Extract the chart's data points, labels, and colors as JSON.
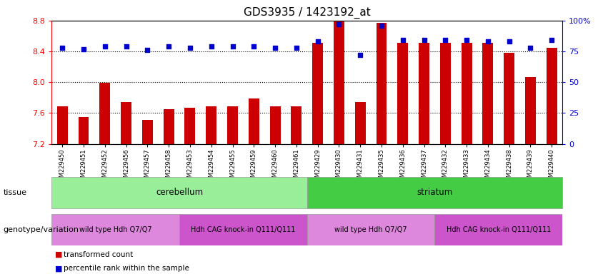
{
  "title": "GDS3935 / 1423192_at",
  "samples": [
    "GSM229450",
    "GSM229451",
    "GSM229452",
    "GSM229456",
    "GSM229457",
    "GSM229458",
    "GSM229453",
    "GSM229454",
    "GSM229455",
    "GSM229459",
    "GSM229460",
    "GSM229461",
    "GSM229429",
    "GSM229430",
    "GSM229431",
    "GSM229435",
    "GSM229436",
    "GSM229437",
    "GSM229432",
    "GSM229433",
    "GSM229434",
    "GSM229438",
    "GSM229439",
    "GSM229440"
  ],
  "bar_values": [
    7.69,
    7.55,
    7.99,
    7.74,
    7.51,
    7.65,
    7.67,
    7.69,
    7.69,
    7.79,
    7.69,
    7.69,
    8.51,
    8.8,
    7.74,
    8.77,
    8.51,
    8.51,
    8.51,
    8.51,
    8.51,
    8.38,
    8.07,
    8.45
  ],
  "percentile_values": [
    78,
    77,
    79,
    79,
    76,
    79,
    78,
    79,
    79,
    79,
    78,
    78,
    83,
    97,
    72,
    96,
    84,
    84,
    84,
    84,
    83,
    83,
    78,
    84
  ],
  "ymin": 7.2,
  "ymax": 8.8,
  "yticks": [
    7.2,
    7.6,
    8.0,
    8.4,
    8.8
  ],
  "right_yticks": [
    0,
    25,
    50,
    75,
    100
  ],
  "right_yticklabels": [
    "0",
    "25",
    "50",
    "75",
    "100%"
  ],
  "bar_color": "#cc0000",
  "dot_color": "#0000cc",
  "tissue_cerebellum_color": "#99ee99",
  "tissue_striatum_color": "#44cc44",
  "genotype_wt_color": "#dd88dd",
  "genotype_ki_color": "#cc55cc",
  "tissue_label": "tissue",
  "genotype_label": "genotype/variation",
  "cerebellum_label": "cerebellum",
  "striatum_label": "striatum",
  "wt_label": "wild type Hdh Q7/Q7",
  "ki_label": "Hdh CAG knock-in Q111/Q111",
  "legend_bar": "transformed count",
  "legend_dot": "percentile rank within the sample",
  "n_cerebellum": 12,
  "n_wt_cereb": 6,
  "n_ki_cereb": 6,
  "n_striatum": 12,
  "n_wt_stri": 6,
  "n_ki_stri": 6,
  "xtick_bg": "#d8d8d8"
}
